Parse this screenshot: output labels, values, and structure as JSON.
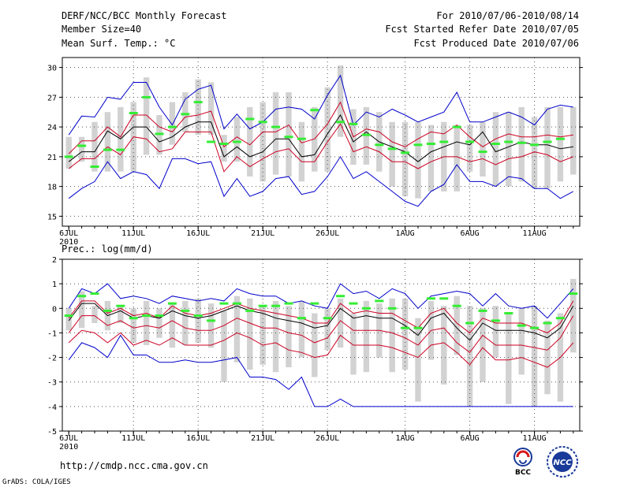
{
  "header": {
    "title": "DERF/NCC/BCC Monthly Forecast",
    "member_size": "Member Size=40",
    "variable": "Mean Surf. Temp.: °C",
    "period": "For 2010/07/06-2010/08/14",
    "fcst_started": "Fcst Started Refer Date 2010/07/05",
    "fcst_produced": "Fcst Produced Date 2010/07/06"
  },
  "footer": {
    "url": "http://cmdp.ncc.cma.gov.cn",
    "grads": "GrADS: COLA/IGES",
    "logo_bcc": "BCC",
    "logo_ncc": "NCC"
  },
  "colors": {
    "max_min": "#0000cc",
    "spread": "#cc0022",
    "mean": "#000000",
    "observed": "#33ee33",
    "box": "#d2d2d2",
    "grid": "#555555"
  },
  "chart_data": [
    {
      "type": "line",
      "title": "Mean Surf. Temp.: °C",
      "x": [
        1,
        2,
        3,
        4,
        5,
        6,
        7,
        8,
        9,
        10,
        11,
        12,
        13,
        14,
        15,
        16,
        17,
        18,
        19,
        20,
        21,
        22,
        23,
        24,
        25,
        26,
        27,
        28,
        29,
        30,
        31,
        32,
        33,
        34,
        35,
        36,
        37,
        38,
        39,
        40
      ],
      "xlim": [
        0.5,
        40.5
      ],
      "xticks": [
        {
          "x": 1,
          "label": "6JUL",
          "sub": "2010"
        },
        {
          "x": 6,
          "label": "11JUL"
        },
        {
          "x": 11,
          "label": "16JUL"
        },
        {
          "x": 16,
          "label": "21JUL"
        },
        {
          "x": 21,
          "label": "26JUL"
        },
        {
          "x": 27,
          "label": "1AUG"
        },
        {
          "x": 32,
          "label": "6AUG"
        },
        {
          "x": 37,
          "label": "11AUG"
        }
      ],
      "ylim": [
        14,
        31
      ],
      "yticks": [
        15,
        18,
        21,
        24,
        27,
        30
      ],
      "series": [
        {
          "name": "max",
          "values": [
            23.2,
            25.1,
            25.0,
            27.0,
            26.8,
            28.5,
            28.5,
            26.0,
            24.2,
            26.8,
            27.8,
            28.2,
            23.8,
            25.3,
            23.8,
            24.5,
            25.8,
            26.0,
            25.8,
            24.8,
            27.2,
            29.2,
            24.2,
            25.5,
            25.0,
            25.8,
            25.2,
            24.5,
            25.0,
            25.5,
            27.5,
            24.5,
            24.5,
            25.0,
            25.5,
            25.0,
            24.2,
            25.8,
            26.2,
            26.0
          ]
        },
        {
          "name": "upper",
          "values": [
            21.3,
            22.6,
            22.6,
            24.0,
            23.0,
            25.2,
            25.2,
            24.0,
            23.5,
            25.0,
            25.2,
            25.6,
            22.0,
            23.0,
            22.2,
            23.5,
            23.5,
            24.2,
            22.4,
            22.8,
            24.3,
            26.5,
            23.0,
            23.8,
            23.5,
            22.5,
            22.0,
            22.8,
            23.5,
            23.3,
            24.2,
            23.0,
            22.0,
            22.8,
            23.3,
            23.0,
            23.0,
            23.2,
            23.0,
            23.2
          ]
        },
        {
          "name": "mean",
          "values": [
            20.5,
            21.5,
            21.5,
            23.6,
            22.8,
            24.0,
            24.0,
            22.5,
            23.0,
            24.0,
            24.5,
            24.5,
            21.0,
            22.0,
            21.0,
            21.5,
            22.8,
            22.8,
            21.0,
            21.2,
            23.3,
            25.2,
            22.5,
            23.5,
            22.5,
            22.0,
            21.5,
            20.5,
            21.5,
            22.0,
            22.5,
            22.2,
            23.5,
            21.5,
            22.0,
            22.5,
            22.2,
            22.2,
            21.8,
            22.0
          ]
        },
        {
          "name": "lower",
          "values": [
            19.8,
            20.8,
            20.8,
            22.0,
            21.2,
            23.0,
            22.8,
            21.5,
            21.8,
            23.5,
            23.5,
            23.5,
            19.5,
            21.0,
            20.0,
            20.8,
            21.5,
            21.8,
            20.5,
            20.5,
            22.5,
            24.3,
            21.5,
            22.0,
            21.5,
            20.5,
            20.5,
            19.8,
            20.5,
            21.0,
            21.0,
            20.5,
            20.8,
            20.2,
            20.8,
            21.0,
            21.5,
            21.2,
            20.5,
            21.0
          ]
        },
        {
          "name": "min",
          "values": [
            16.8,
            17.8,
            18.5,
            20.5,
            18.8,
            19.5,
            19.2,
            17.8,
            20.8,
            20.8,
            20.3,
            20.5,
            17.0,
            18.8,
            17.0,
            17.5,
            18.8,
            19.0,
            17.2,
            17.5,
            19.0,
            21.0,
            18.8,
            19.5,
            18.5,
            17.5,
            16.5,
            16.0,
            17.5,
            18.2,
            20.2,
            18.5,
            18.5,
            18.0,
            19.0,
            18.8,
            17.8,
            17.8,
            16.8,
            17.5
          ]
        }
      ],
      "boxes": {
        "low": [
          19.8,
          20.5,
          19.5,
          19.5,
          19.5,
          19.5,
          21.2,
          21.2,
          22.2,
          23.5,
          23.2,
          23.2,
          20.5,
          20.5,
          19.0,
          18.5,
          19.2,
          19.0,
          18.5,
          19.5,
          19.5,
          23.0,
          20.2,
          20.2,
          19.5,
          18.0,
          17.0,
          16.8,
          17.5,
          17.5,
          17.5,
          19.5,
          19.0,
          18.0,
          18.0,
          18.5,
          17.8,
          17.8,
          18.5,
          19.2
        ],
        "high": [
          23.0,
          23.0,
          24.5,
          25.5,
          26.0,
          26.5,
          29.0,
          25.2,
          26.5,
          27.5,
          28.8,
          28.5,
          23.2,
          25.0,
          26.0,
          26.5,
          27.5,
          27.5,
          24.5,
          26.0,
          28.0,
          30.2,
          25.8,
          26.0,
          25.5,
          24.5,
          24.5,
          24.5,
          24.2,
          24.5,
          24.2,
          24.2,
          24.5,
          25.5,
          25.5,
          26.0,
          25.0,
          26.0,
          26.0,
          26.0
        ]
      },
      "observed": [
        21.0,
        22.1,
        20.0,
        21.7,
        21.7,
        25.4,
        27.0,
        23.3,
        24.0,
        25.3,
        26.5,
        22.5,
        22.3,
        22.5,
        24.8,
        24.5,
        24.0,
        23.0,
        22.8,
        25.7,
        null,
        24.5,
        24.3,
        23.2,
        22.2,
        21.8,
        21.4,
        22.2,
        22.3,
        22.5,
        24.0,
        22.5,
        21.5,
        22.3,
        22.5,
        22.4,
        22.2,
        22.5,
        22.8,
        null
      ]
    },
    {
      "type": "line",
      "title": "Prec.: log(mm/d)",
      "x": [
        1,
        2,
        3,
        4,
        5,
        6,
        7,
        8,
        9,
        10,
        11,
        12,
        13,
        14,
        15,
        16,
        17,
        18,
        19,
        20,
        21,
        22,
        23,
        24,
        25,
        26,
        27,
        28,
        29,
        30,
        31,
        32,
        33,
        34,
        35,
        36,
        37,
        38,
        39,
        40
      ],
      "xlim": [
        0.5,
        40.5
      ],
      "xticks": [
        {
          "x": 1,
          "label": "6JUL",
          "sub": "2010"
        },
        {
          "x": 6,
          "label": "11JUL"
        },
        {
          "x": 11,
          "label": "16JUL"
        },
        {
          "x": 16,
          "label": "21JUL"
        },
        {
          "x": 21,
          "label": "26JUL"
        },
        {
          "x": 27,
          "label": "1AUG"
        },
        {
          "x": 32,
          "label": "6AUG"
        },
        {
          "x": 37,
          "label": "11AUG"
        }
      ],
      "ylim": [
        -5,
        2
      ],
      "yticks": [
        -5,
        -4,
        -3,
        -2,
        -1,
        0,
        1,
        2
      ],
      "series": [
        {
          "name": "max",
          "values": [
            0.0,
            0.8,
            0.6,
            1.0,
            0.4,
            0.5,
            0.4,
            0.2,
            0.5,
            0.4,
            0.3,
            0.4,
            0.3,
            0.8,
            0.6,
            0.5,
            0.5,
            0.2,
            0.3,
            0.1,
            0.0,
            1.0,
            0.6,
            0.7,
            0.4,
            0.8,
            0.6,
            0.0,
            0.5,
            0.6,
            0.7,
            0.6,
            0.1,
            0.6,
            0.1,
            0.0,
            0.1,
            -0.4,
            0.2,
            0.8
          ]
        },
        {
          "name": "upper",
          "values": [
            -0.4,
            0.3,
            0.3,
            -0.2,
            0.0,
            -0.3,
            -0.2,
            -0.4,
            0.1,
            -0.2,
            -0.3,
            -0.2,
            0.0,
            0.2,
            0.0,
            -0.1,
            -0.2,
            -0.3,
            -0.4,
            -0.6,
            -0.6,
            0.2,
            -0.2,
            -0.1,
            -0.2,
            -0.2,
            -0.5,
            -0.8,
            -0.2,
            0.0,
            -0.6,
            -1.0,
            -0.4,
            -0.6,
            -0.6,
            -0.6,
            -0.8,
            -1.0,
            -0.6,
            0.3
          ]
        },
        {
          "name": "mean",
          "values": [
            -0.5,
            0.2,
            0.2,
            -0.3,
            -0.1,
            -0.4,
            -0.3,
            -0.4,
            -0.1,
            -0.3,
            -0.4,
            -0.3,
            -0.1,
            0.1,
            -0.1,
            -0.2,
            -0.4,
            -0.5,
            -0.6,
            -0.8,
            -0.7,
            0.0,
            -0.4,
            -0.3,
            -0.4,
            -0.4,
            -0.7,
            -1.1,
            -0.4,
            -0.2,
            -0.8,
            -1.3,
            -0.6,
            -0.9,
            -0.9,
            -0.9,
            -1.0,
            -1.2,
            -0.8,
            0.1
          ]
        },
        {
          "name": "lower",
          "values": [
            -1.0,
            -0.3,
            -0.3,
            -0.7,
            -0.5,
            -0.8,
            -0.7,
            -0.8,
            -0.5,
            -0.8,
            -0.9,
            -0.9,
            -0.7,
            -0.4,
            -0.6,
            -0.8,
            -0.8,
            -1.0,
            -1.1,
            -1.4,
            -1.2,
            -0.5,
            -0.9,
            -0.9,
            -0.9,
            -1.0,
            -1.2,
            -1.5,
            -0.9,
            -0.8,
            -1.4,
            -1.8,
            -1.1,
            -1.5,
            -1.5,
            -1.5,
            -1.6,
            -1.7,
            -1.2,
            -0.3
          ]
        },
        {
          "name": "spread_low",
          "values": [
            -1.4,
            -0.9,
            -1.0,
            -1.4,
            -1.0,
            -1.5,
            -1.3,
            -1.5,
            -1.2,
            -1.5,
            -1.5,
            -1.5,
            -1.3,
            -1.0,
            -1.2,
            -1.5,
            -1.4,
            -1.7,
            -1.8,
            -2.0,
            -1.9,
            -1.1,
            -1.5,
            -1.5,
            -1.5,
            -1.6,
            -1.8,
            -2.0,
            -1.5,
            -1.4,
            -1.8,
            -2.3,
            -1.6,
            -2.1,
            -2.1,
            -2.0,
            -2.2,
            -2.4,
            -2.0,
            -1.4
          ]
        },
        {
          "name": "min",
          "values": [
            -2.1,
            -1.4,
            -1.6,
            -2.0,
            -1.1,
            -1.9,
            -1.9,
            -2.2,
            -2.2,
            -2.1,
            -2.2,
            -2.2,
            -2.1,
            -2.0,
            -2.8,
            -2.8,
            -2.9,
            -3.3,
            -2.8,
            -4.0,
            -4.0,
            -3.7,
            -4.0,
            -4.0,
            -4.0,
            -4.0,
            -4.0,
            -4.0,
            -4.0,
            -4.0,
            -4.0,
            -4.0,
            -4.0,
            -4.0,
            -4.0,
            -4.0,
            -4.0,
            -4.0,
            -4.0,
            -4.0
          ]
        }
      ],
      "boxes": {
        "low": [
          -0.9,
          -0.8,
          -0.6,
          -0.9,
          -0.6,
          -1.4,
          -1.5,
          -1.2,
          -1.6,
          -1.5,
          -1.4,
          -1.6,
          -3.0,
          -2.2,
          -2.5,
          -2.3,
          -2.6,
          -2.4,
          -2.0,
          -2.8,
          -1.7,
          -1.6,
          -2.7,
          -2.6,
          -2.0,
          -2.6,
          -2.5,
          -3.8,
          -2.1,
          -3.1,
          -1.9,
          -4.0,
          -3.0,
          -2.0,
          -3.9,
          -2.7,
          -4.0,
          -3.5,
          -3.8,
          -1.8
        ],
        "high": [
          0.0,
          0.7,
          0.1,
          0.3,
          0.1,
          0.0,
          0.3,
          0.0,
          0.2,
          0.3,
          0.4,
          0.2,
          -0.1,
          0.5,
          0.4,
          0.1,
          0.3,
          0.1,
          0.3,
          -0.2,
          0.0,
          0.4,
          -0.2,
          0.3,
          0.2,
          0.4,
          0.4,
          -0.4,
          0.3,
          0.1,
          0.5,
          0.1,
          0.0,
          0.1,
          -0.2,
          0.0,
          0.1,
          -0.5,
          -0.2,
          1.2
        ]
      },
      "observed": [
        -0.3,
        0.5,
        0.6,
        -0.1,
        0.1,
        -0.4,
        -0.3,
        -0.3,
        0.2,
        -0.1,
        -0.3,
        -0.5,
        0.2,
        0.2,
        -0.1,
        0.1,
        0.1,
        0.2,
        -0.4,
        0.2,
        -0.4,
        0.5,
        0.2,
        0.0,
        0.3,
        0.0,
        -0.8,
        -0.8,
        0.4,
        0.4,
        0.1,
        -0.6,
        -0.1,
        -0.5,
        -0.2,
        -0.7,
        -0.8,
        -0.6,
        -0.4,
        0.6
      ]
    }
  ]
}
